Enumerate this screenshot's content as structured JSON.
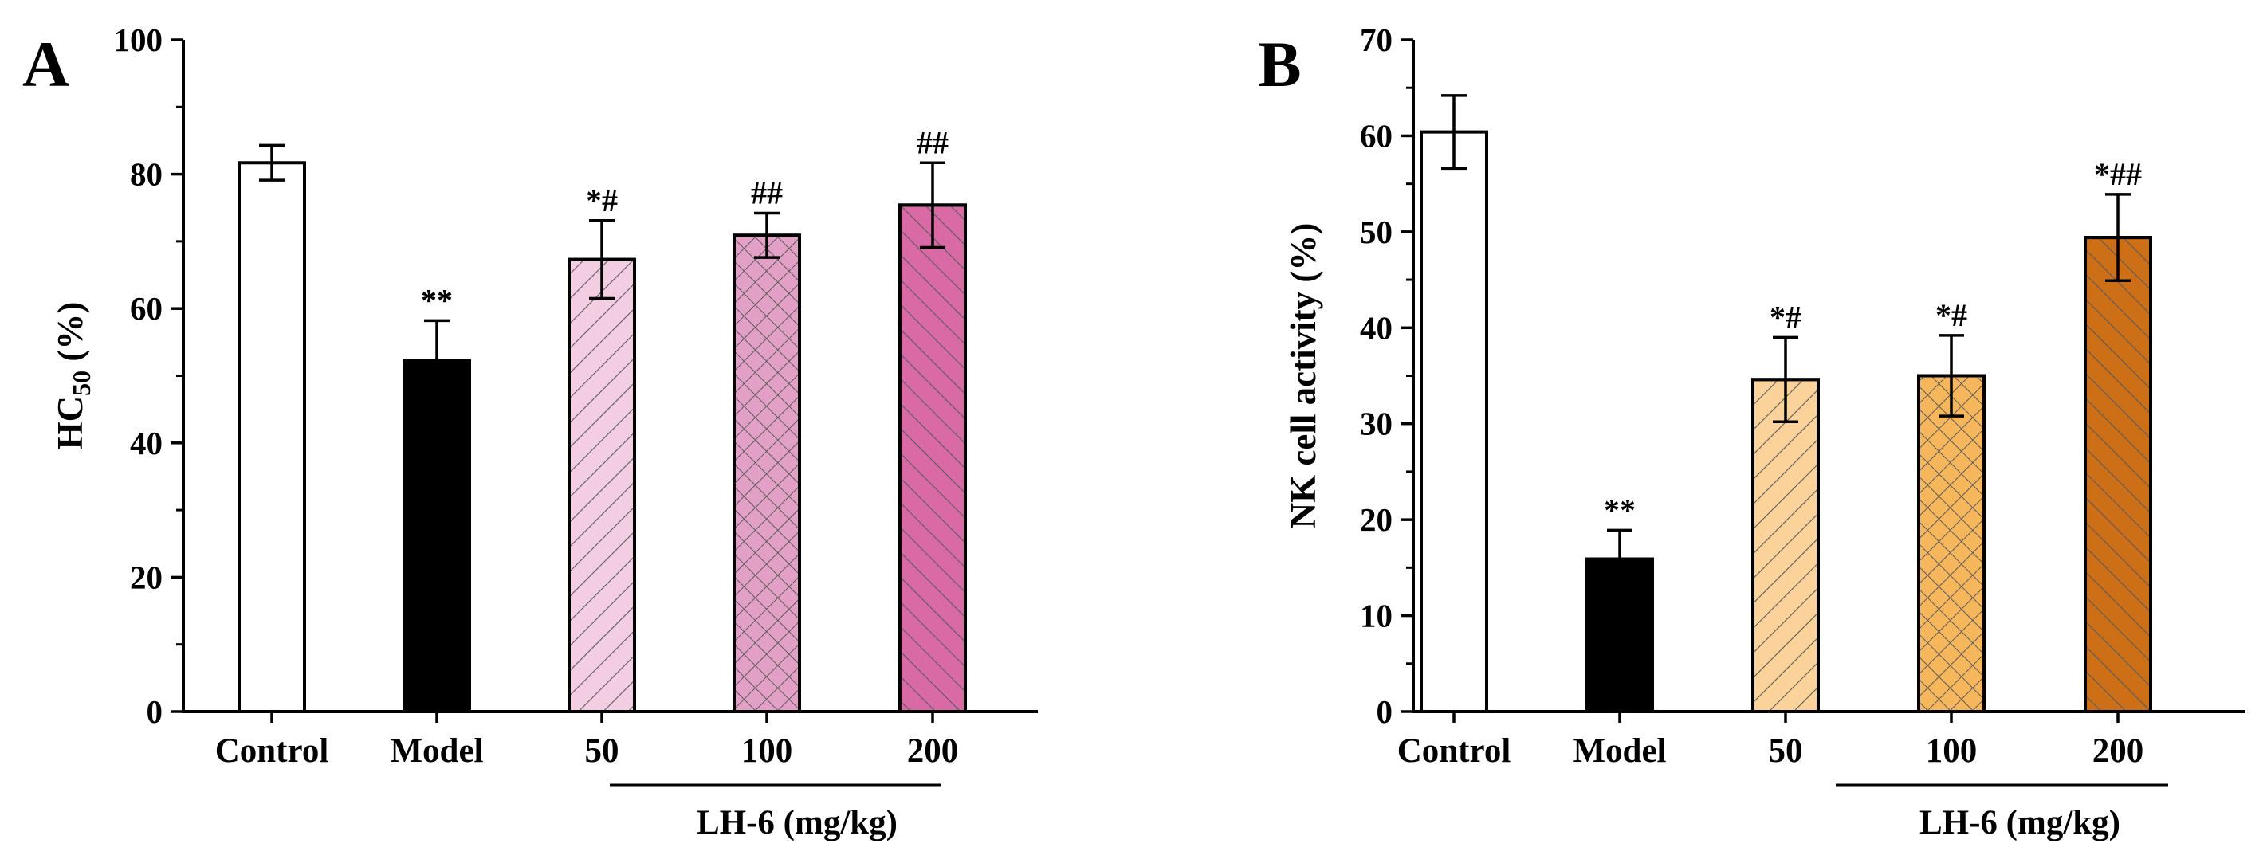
{
  "chart_data": [
    {
      "type": "bar",
      "panel_label": "A",
      "categories": [
        "Control",
        "Model",
        "50",
        "100",
        "200"
      ],
      "values": [
        81.7,
        52.2,
        67.3,
        70.9,
        75.4
      ],
      "errors": [
        2.6,
        6.0,
        5.8,
        3.3,
        6.3
      ],
      "annotations": [
        "",
        "**",
        "*#",
        "##",
        "##"
      ],
      "ylabel_main": "HC",
      "ylabel_sub": "50",
      "ylabel_suffix": " (%)",
      "ylim": [
        0,
        100
      ],
      "yticks": [
        "0",
        "20",
        "40",
        "60",
        "80",
        "100"
      ],
      "group_label": "LH-6 (mg/kg)",
      "fills": [
        "#ffffff",
        "#000000",
        "#f3cde2",
        "#e3a0c6",
        "#d96aa6"
      ],
      "hatches": [
        "none",
        "none",
        "diag",
        "cross",
        "diag-rev"
      ]
    },
    {
      "type": "bar",
      "panel_label": "B",
      "categories": [
        "Control",
        "Model",
        "50",
        "100",
        "200"
      ],
      "values": [
        60.4,
        15.9,
        34.6,
        35.0,
        49.4
      ],
      "errors": [
        3.8,
        3.0,
        4.4,
        4.2,
        4.5
      ],
      "annotations": [
        "",
        "**",
        "*#",
        "*#",
        "*##"
      ],
      "ylabel_main": "NK cell activity (%)",
      "ylabel_sub": "",
      "ylabel_suffix": "",
      "ylim": [
        0,
        70
      ],
      "yticks": [
        "0",
        "10",
        "20",
        "30",
        "40",
        "50",
        "60",
        "70"
      ],
      "group_label": "LH-6 (mg/kg)",
      "fills": [
        "#ffffff",
        "#000000",
        "#fbd39a",
        "#f6b65c",
        "#cc6f17"
      ],
      "hatches": [
        "none",
        "none",
        "diag",
        "cross",
        "diag-rev"
      ]
    }
  ]
}
